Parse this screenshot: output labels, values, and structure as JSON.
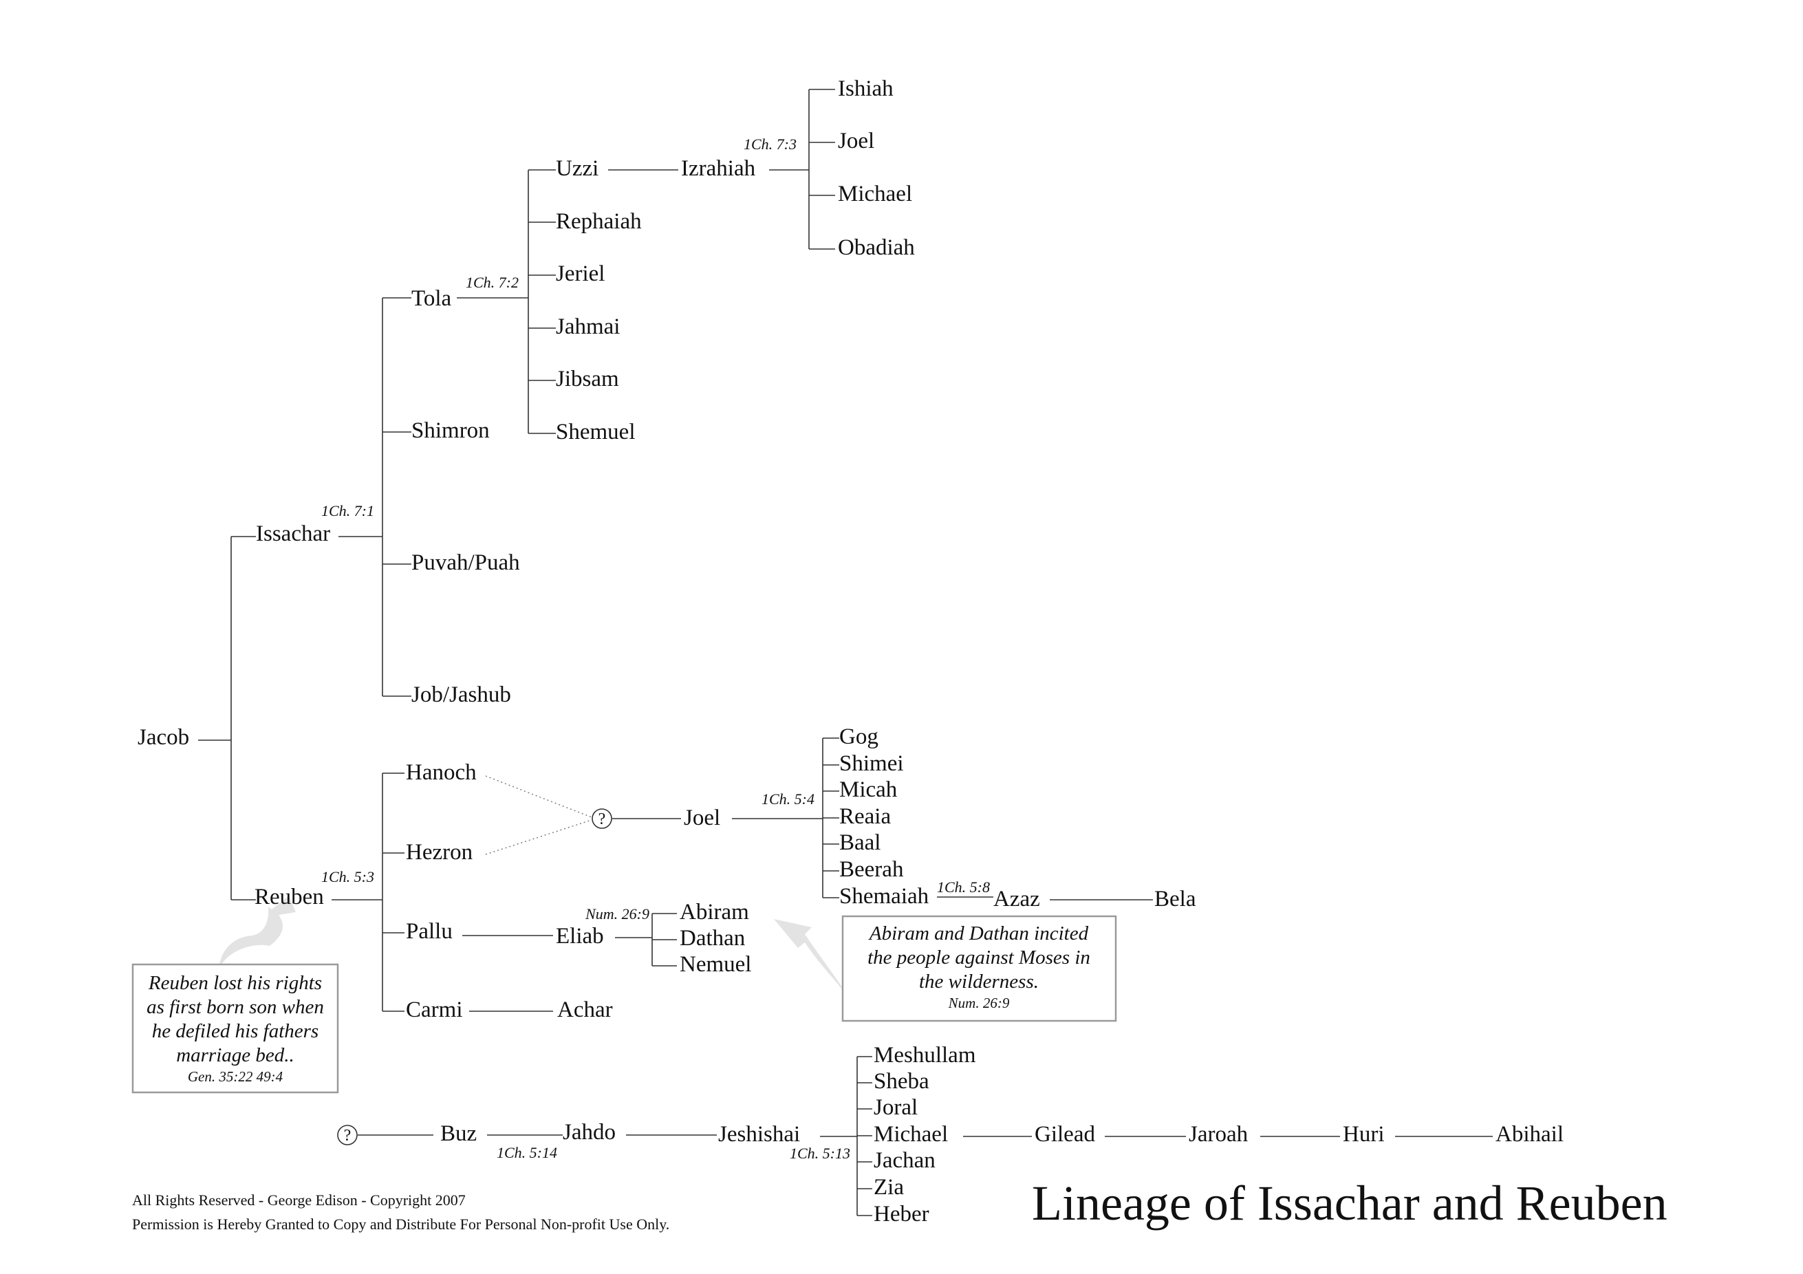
{
  "title": "Lineage of Issachar and Reuben",
  "footer": {
    "line1": "All Rights Reserved  -  George Edison  -  Copyright 2007",
    "line2": "Permission is Hereby Granted to Copy and Distribute For Personal Non-profit Use Only."
  },
  "unknown_marker": "?",
  "people": {
    "jacob": "Jacob",
    "issachar": "Issachar",
    "reuben": "Reuben",
    "tola": "Tola",
    "shimron": "Shimron",
    "puvah": "Puvah/Puah",
    "job": "Job/Jashub",
    "uzzi": "Uzzi",
    "rephaiah": "Rephaiah",
    "jeriel": "Jeriel",
    "jahmai": "Jahmai",
    "jibsam": "Jibsam",
    "shemuel": "Shemuel",
    "izrahiah": "Izrahiah",
    "ishiah": "Ishiah",
    "joel_iz": "Joel",
    "michael_iz": "Michael",
    "obadiah": "Obadiah",
    "hanoch": "Hanoch",
    "hezron": "Hezron",
    "pallu": "Pallu",
    "carmi": "Carmi",
    "joel": "Joel",
    "gog": "Gog",
    "shimei": "Shimei",
    "micah": "Micah",
    "reaia": "Reaia",
    "baal": "Baal",
    "beerah": "Beerah",
    "shemaiah": "Shemaiah",
    "azaz": "Azaz",
    "bela": "Bela",
    "eliab": "Eliab",
    "abiram": "Abiram",
    "dathan": "Dathan",
    "nemuel": "Nemuel",
    "achar": "Achar",
    "buz": "Buz",
    "jahdo": "Jahdo",
    "jeshishai": "Jeshishai",
    "meshullam": "Meshullam",
    "sheba": "Sheba",
    "joral": "Joral",
    "michael_gad": "Michael",
    "jachan": "Jachan",
    "zia": "Zia",
    "heber": "Heber",
    "gilead": "Gilead",
    "jaroah": "Jaroah",
    "huri": "Huri",
    "abihail": "Abihail"
  },
  "refs": {
    "issachar": "1Ch. 7:1",
    "tola": "1Ch. 7:2",
    "izrahiah": "1Ch. 7:3",
    "reuben": "1Ch. 5:3",
    "joel": "1Ch. 5:4",
    "shemaiah": "1Ch. 5:8",
    "eliab": "Num. 26:9",
    "buz": "1Ch. 5:14",
    "jeshishai": "1Ch. 5:13"
  },
  "notes": {
    "reuben": {
      "lines": [
        "Reuben lost his rights",
        "as first born son when",
        "he defiled his fathers",
        "marriage bed.."
      ],
      "ref": "Gen. 35:22  49:4"
    },
    "abiram": {
      "lines": [
        "Abiram and Dathan incited",
        "the people against Moses in",
        "the wilderness."
      ],
      "ref": "Num. 26:9"
    }
  }
}
